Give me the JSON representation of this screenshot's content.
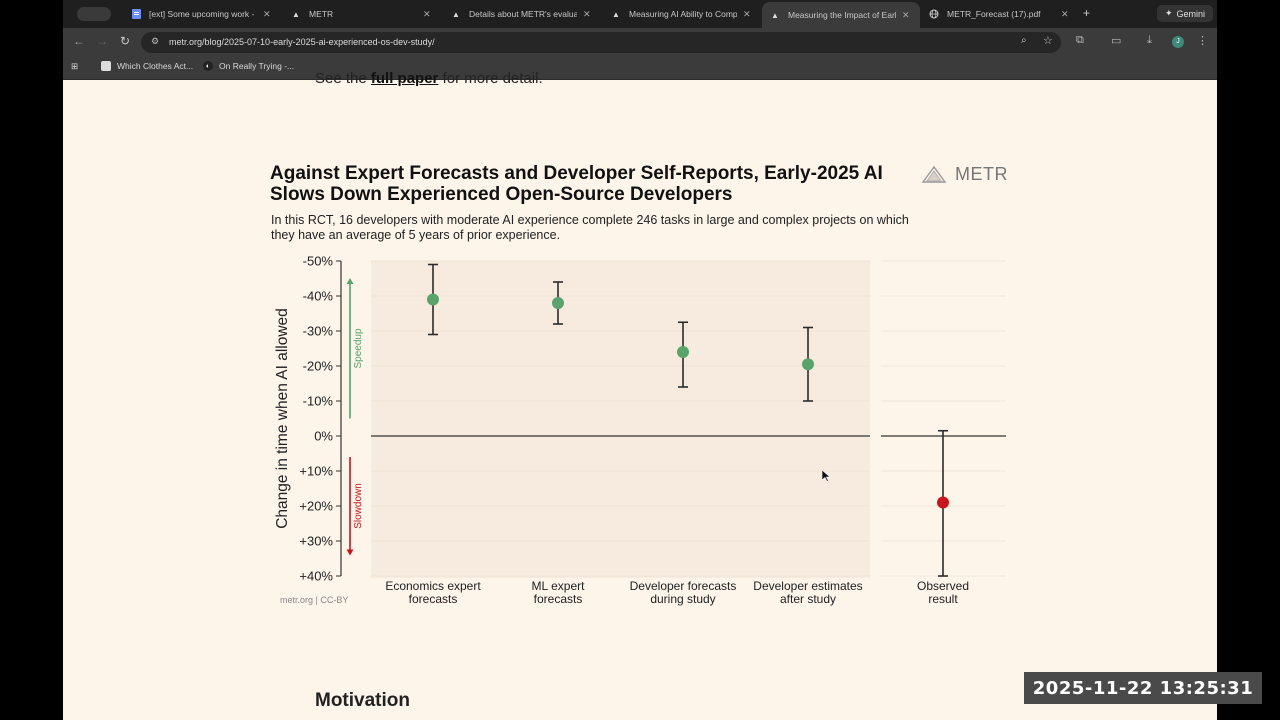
{
  "browser": {
    "tabs": [
      {
        "label": "[ext] Some upcoming work -",
        "icon": "docs-icon"
      },
      {
        "label": "METR",
        "icon": "metr-icon"
      },
      {
        "label": "Details about METR's evalua",
        "icon": "metr-icon"
      },
      {
        "label": "Measuring AI Ability to Comp",
        "icon": "metr-icon"
      },
      {
        "label": "Measuring the Impact of Earl",
        "icon": "metr-icon",
        "active": true
      },
      {
        "label": "METR_Forecast (17).pdf",
        "icon": "globe-icon"
      }
    ],
    "gemini_label": "Gemini",
    "url": "metr.org/blog/2025-07-10-early-2025-ai-experienced-os-dev-study/",
    "bookmarks": [
      {
        "label": "Which Clothes Act..."
      },
      {
        "label": "On Really Trying -..."
      }
    ],
    "profile_initial": "J"
  },
  "page": {
    "prev_text_before": "See the ",
    "prev_link": "full paper",
    "prev_text_after": " for more detail.",
    "figure_title": "Against Expert Forecasts and Developer Self-Reports, Early-2025 AI Slows Down Experienced Open-Source Developers",
    "figure_subtitle": "In this RCT, 16 developers with moderate AI experience complete 246 tasks in large and complex projects on which they have an average of 5 years of prior experience.",
    "logo_text": "METR",
    "credit": "metr.org  |  CC-BY",
    "next_heading": "Motivation"
  },
  "chart_data": {
    "type": "scatter",
    "title": "Against Expert Forecasts and Developer Self-Reports, Early-2025 AI Slows Down Experienced Open-Source Developers",
    "ylabel": "Change in time when AI allowed",
    "ylim": [
      -50,
      40
    ],
    "y_inverted": true,
    "yticks": [
      "-50%",
      "-40%",
      "-30%",
      "-20%",
      "-10%",
      "0%",
      "+10%",
      "+20%",
      "+30%",
      "+40%"
    ],
    "ytick_values": [
      -50,
      -40,
      -30,
      -20,
      -10,
      0,
      10,
      20,
      30,
      40
    ],
    "speedup_label": "Speedup",
    "slowdown_label": "Slowdown",
    "colors": {
      "forecast": "#5aa36a",
      "observed": "#c8161d",
      "speedup_arrow": "#5aa36a",
      "slowdown_arrow": "#c8161d"
    },
    "points": [
      {
        "label": "Economics expert\nforecasts",
        "y": -39,
        "low": -49,
        "high": -29,
        "kind": "forecast"
      },
      {
        "label": "ML expert\nforecasts",
        "y": -38,
        "low": -44,
        "high": -32,
        "kind": "forecast"
      },
      {
        "label": "Developer forecasts\nduring study",
        "y": -24,
        "low": -32.5,
        "high": -14,
        "kind": "forecast"
      },
      {
        "label": "Developer estimates\nafter study",
        "y": -20.5,
        "low": -31,
        "high": -10,
        "kind": "forecast"
      },
      {
        "label": "Observed\nresult",
        "y": 19,
        "low": -1.5,
        "high": 40,
        "kind": "observed"
      }
    ]
  },
  "overlay": {
    "timestamp": "2025-11-22  13:25:31"
  }
}
